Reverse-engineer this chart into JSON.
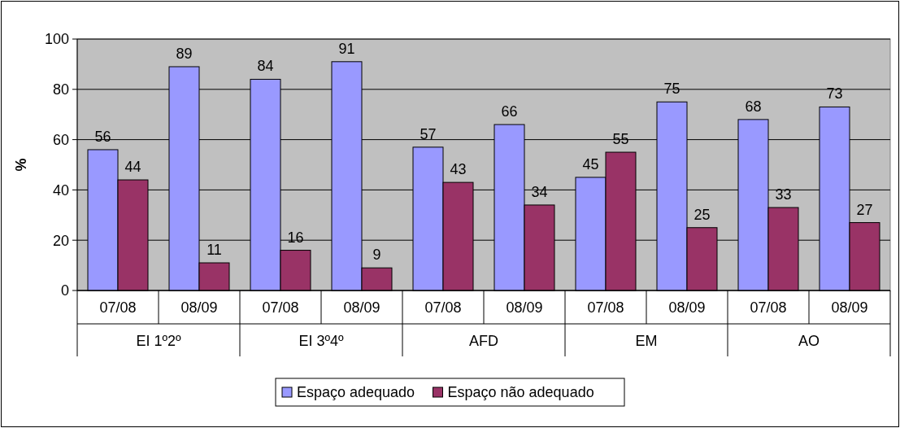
{
  "chart_data": {
    "type": "bar",
    "ylabel": "%",
    "categories": [
      "07/08",
      "08/09",
      "07/08",
      "08/09",
      "07/08",
      "08/09",
      "07/08",
      "08/09",
      "07/08",
      "08/09"
    ],
    "annotations": [
      "EI 1º2º",
      "EI 3º4º",
      "AFD",
      "EM",
      "AO"
    ],
    "series": [
      {
        "name": "Espaço adequado",
        "color": "#9999ff",
        "values": [
          56,
          89,
          84,
          91,
          57,
          66,
          45,
          75,
          68,
          73
        ]
      },
      {
        "name": "Espaço não adequado",
        "color": "#993366",
        "values": [
          44,
          11,
          16,
          9,
          43,
          34,
          55,
          25,
          33,
          27
        ]
      }
    ],
    "ylim": [
      0,
      100
    ],
    "yticks": [
      0,
      20,
      40,
      60,
      80,
      100
    ],
    "grid": "y",
    "legend": "bottom",
    "data_labels": true
  }
}
